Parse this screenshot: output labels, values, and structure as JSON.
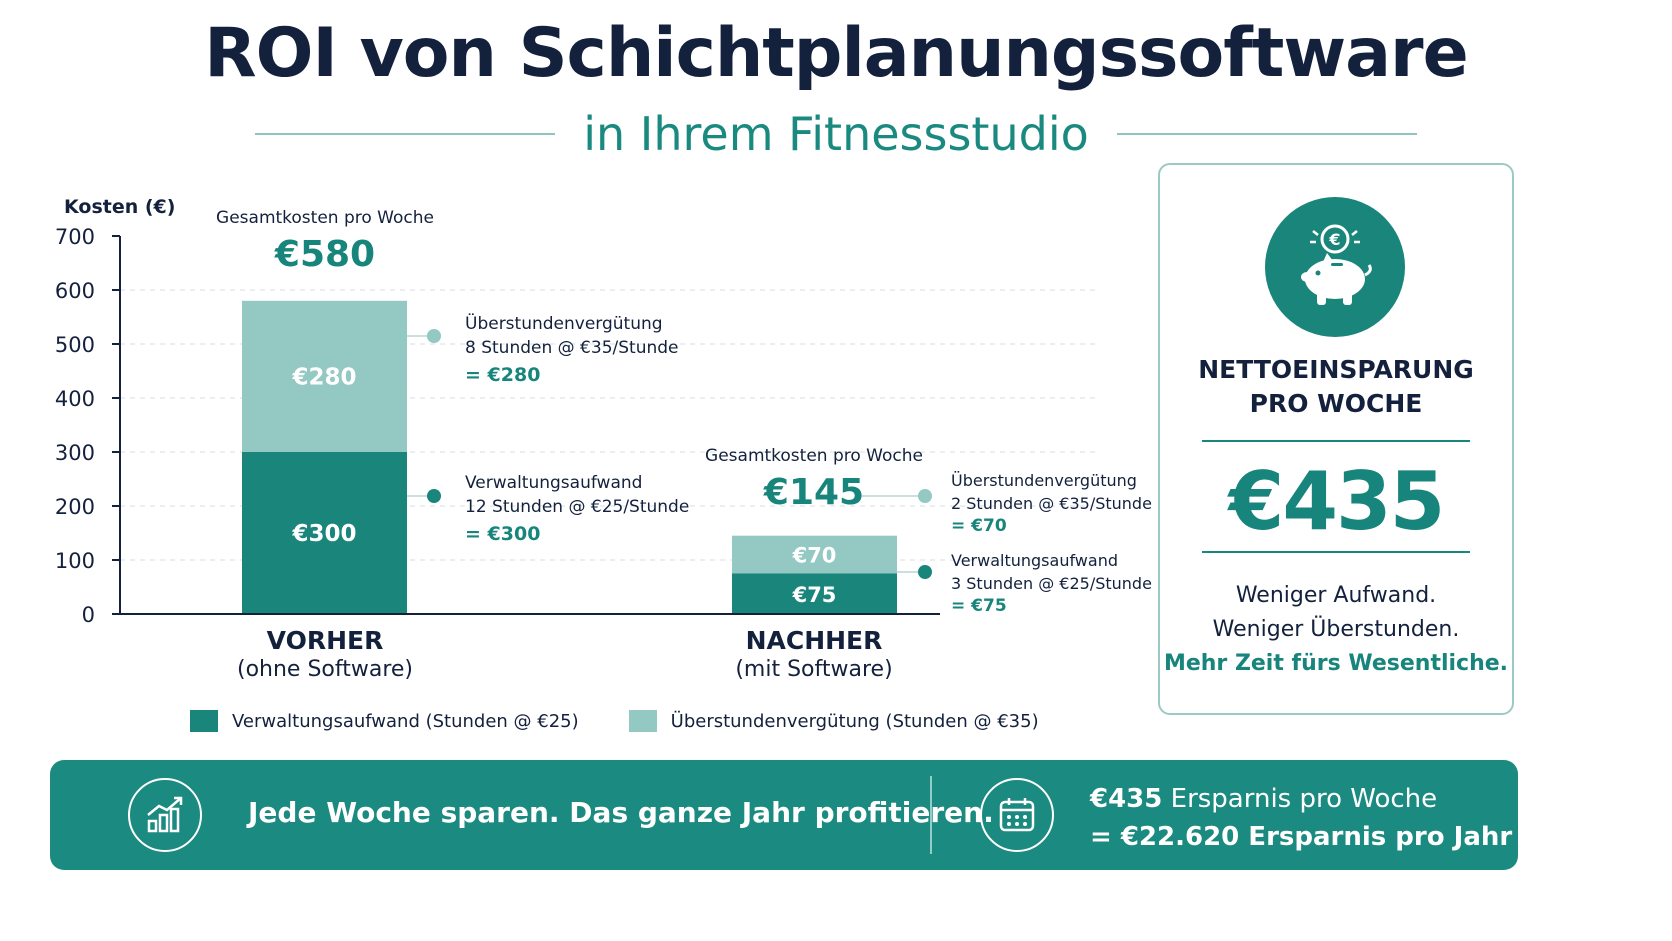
{
  "header": {
    "title": "ROI von Schichtplanungssoftware",
    "subtitle": "in Ihrem Fitnessstudio"
  },
  "colors": {
    "admin": "#1a857b",
    "overtime": "#93c8c3",
    "accent": "#17857b",
    "navy": "#14213d",
    "banner": "#1b8a80"
  },
  "chart_data": {
    "type": "bar",
    "stacked": true,
    "ylabel": "Kosten (€)",
    "ylim": [
      0,
      700
    ],
    "yticks": [
      0,
      100,
      200,
      300,
      400,
      500,
      600,
      700
    ],
    "grid": true,
    "categories": [
      "VORHER",
      "NACHHER"
    ],
    "category_subtitles": [
      "(ohne Software)",
      "(mit Software)"
    ],
    "series": [
      {
        "name": "Verwaltungsaufwand (Stunden @ €25)",
        "values": [
          300,
          75
        ],
        "labels": [
          "€300",
          "€75"
        ]
      },
      {
        "name": "Überstundenvergütung (Stunden @ €35)",
        "values": [
          280,
          70
        ],
        "labels": [
          "€280",
          "€70"
        ]
      }
    ],
    "totals": [
      {
        "label": "Gesamtkosten pro Woche",
        "value": "€580"
      },
      {
        "label": "Gesamtkosten pro Woche",
        "value": "€145"
      }
    ],
    "annotations": [
      {
        "title": "Überstundenvergütung",
        "detail": "8 Stunden @ €35/Stunde",
        "result": "= €280"
      },
      {
        "title": "Verwaltungsaufwand",
        "detail": "12 Stunden @ €25/Stunde",
        "result": "= €300"
      },
      {
        "title": "Überstundenvergütung",
        "detail": "2 Stunden @ €35/Stunde",
        "result": "= €70"
      },
      {
        "title": "Verwaltungsaufwand",
        "detail": "3 Stunden @ €25/Stunde",
        "result": "= €75"
      }
    ],
    "legend_position": "bottom"
  },
  "card": {
    "title_line1": "NETTOEINSPARUNG",
    "title_line2": "PRO WOCHE",
    "value": "€435",
    "line1": "Weniger Aufwand.",
    "line2": "Weniger Überstunden.",
    "line3": "Mehr Zeit fürs Wesentliche.",
    "icon": "piggy-bank-icon"
  },
  "banner": {
    "slogan": "Jede Woche sparen. Das ganze Jahr profitieren.",
    "weekly_amount": "€435",
    "weekly_text": " Ersparnis pro Woche",
    "yearly_text": "= €22.620 Ersparnis pro Jahr",
    "icon_left": "growth-chart-icon",
    "icon_right": "calendar-icon"
  }
}
